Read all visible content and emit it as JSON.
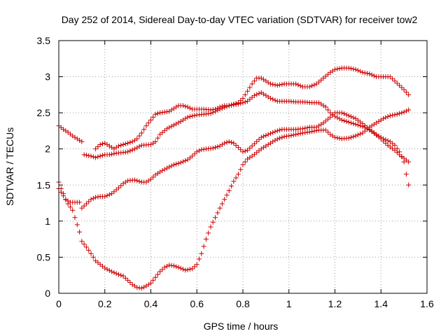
{
  "chart_data": {
    "type": "scatter",
    "title": "Day 252 of 2014, Sidereal Day-to-day VTEC variation (SDTVAR) for receiver tow2",
    "xlabel": "GPS time / hours",
    "ylabel": "SDTVAR / TECUs",
    "xlim": [
      0,
      1.6
    ],
    "ylim": [
      0,
      3.5
    ],
    "xticks": [
      0,
      0.2,
      0.4,
      0.6,
      0.8,
      1,
      1.2,
      1.4,
      1.6
    ],
    "xtick_labels": [
      "0",
      "0.2",
      "0.4",
      "0.6",
      "0.8",
      "1",
      "1.2",
      "1.4",
      "1.6"
    ],
    "yticks": [
      0,
      0.5,
      1,
      1.5,
      2,
      2.5,
      3,
      3.5
    ],
    "ytick_labels": [
      "0",
      "0.5",
      "1",
      "1.5",
      "2",
      "2.5",
      "3",
      "3.5"
    ],
    "grid": true,
    "marker": "+",
    "marker_color": "#cc0000",
    "series": [
      {
        "name": "series-1",
        "points": [
          [
            0,
            2.32
          ],
          [
            0.02,
            2.27
          ],
          [
            0.04,
            2.23
          ],
          [
            0.06,
            2.18
          ],
          [
            0.08,
            2.14
          ],
          [
            0.1,
            2.1
          ],
          [
            0.11,
            1.92
          ],
          [
            0.14,
            1.9
          ],
          [
            0.16,
            1.88
          ],
          [
            0.18,
            1.9
          ],
          [
            0.2,
            1.92
          ],
          [
            0.22,
            1.92
          ],
          [
            0.25,
            1.94
          ],
          [
            0.28,
            1.95
          ],
          [
            0.3,
            1.96
          ],
          [
            0.33,
            2.0
          ],
          [
            0.36,
            2.05
          ],
          [
            0.4,
            2.06
          ],
          [
            0.42,
            2.1
          ],
          [
            0.44,
            2.2
          ],
          [
            0.47,
            2.28
          ],
          [
            0.5,
            2.33
          ],
          [
            0.53,
            2.38
          ],
          [
            0.56,
            2.44
          ],
          [
            0.6,
            2.47
          ],
          [
            0.63,
            2.48
          ],
          [
            0.66,
            2.49
          ],
          [
            0.7,
            2.55
          ],
          [
            0.74,
            2.6
          ],
          [
            0.78,
            2.62
          ],
          [
            0.82,
            2.66
          ],
          [
            0.85,
            2.74
          ],
          [
            0.88,
            2.78
          ],
          [
            0.9,
            2.74
          ],
          [
            0.92,
            2.7
          ],
          [
            0.95,
            2.66
          ],
          [
            0.98,
            2.66
          ],
          [
            1.0,
            2.66
          ],
          [
            1.03,
            2.65
          ],
          [
            1.06,
            2.65
          ],
          [
            1.1,
            2.64
          ],
          [
            1.13,
            2.64
          ],
          [
            1.16,
            2.58
          ],
          [
            1.18,
            2.5
          ],
          [
            1.2,
            2.45
          ],
          [
            1.23,
            2.4
          ],
          [
            1.26,
            2.37
          ],
          [
            1.3,
            2.33
          ],
          [
            1.33,
            2.3
          ],
          [
            1.36,
            2.24
          ],
          [
            1.4,
            2.14
          ],
          [
            1.43,
            2.05
          ],
          [
            1.46,
            1.98
          ],
          [
            1.48,
            1.92
          ],
          [
            1.5,
            1.87
          ],
          [
            1.52,
            1.82
          ]
        ]
      },
      {
        "name": "series-2",
        "points": [
          [
            0,
            1.54
          ],
          [
            0.01,
            1.45
          ],
          [
            0.02,
            1.38
          ],
          [
            0.03,
            1.3
          ],
          [
            0.05,
            1.26
          ],
          [
            0.07,
            1.26
          ],
          [
            0.09,
            1.26
          ],
          [
            0.1,
            1.18
          ],
          [
            0.12,
            1.24
          ],
          [
            0.14,
            1.3
          ],
          [
            0.16,
            1.33
          ],
          [
            0.18,
            1.34
          ],
          [
            0.2,
            1.34
          ],
          [
            0.23,
            1.38
          ],
          [
            0.26,
            1.46
          ],
          [
            0.28,
            1.52
          ],
          [
            0.3,
            1.56
          ],
          [
            0.33,
            1.57
          ],
          [
            0.36,
            1.54
          ],
          [
            0.38,
            1.54
          ],
          [
            0.4,
            1.58
          ],
          [
            0.42,
            1.64
          ],
          [
            0.45,
            1.7
          ],
          [
            0.48,
            1.75
          ],
          [
            0.5,
            1.78
          ],
          [
            0.53,
            1.81
          ],
          [
            0.56,
            1.85
          ],
          [
            0.58,
            1.9
          ],
          [
            0.6,
            1.96
          ],
          [
            0.62,
            1.99
          ],
          [
            0.64,
            2.0
          ],
          [
            0.67,
            2.01
          ],
          [
            0.7,
            2.04
          ],
          [
            0.72,
            2.08
          ],
          [
            0.74,
            2.1
          ],
          [
            0.76,
            2.08
          ],
          [
            0.78,
            2.02
          ],
          [
            0.8,
            1.96
          ],
          [
            0.82,
            1.98
          ],
          [
            0.84,
            2.04
          ],
          [
            0.86,
            2.1
          ],
          [
            0.88,
            2.16
          ],
          [
            0.91,
            2.2
          ],
          [
            0.94,
            2.24
          ],
          [
            0.97,
            2.27
          ],
          [
            1.0,
            2.27
          ],
          [
            1.03,
            2.27
          ],
          [
            1.06,
            2.28
          ],
          [
            1.09,
            2.3
          ],
          [
            1.12,
            2.3
          ],
          [
            1.15,
            2.36
          ],
          [
            1.18,
            2.44
          ],
          [
            1.2,
            2.5
          ],
          [
            1.23,
            2.5
          ],
          [
            1.26,
            2.46
          ],
          [
            1.29,
            2.42
          ],
          [
            1.32,
            2.35
          ],
          [
            1.35,
            2.27
          ],
          [
            1.38,
            2.2
          ],
          [
            1.41,
            2.14
          ],
          [
            1.44,
            2.1
          ],
          [
            1.46,
            2.05
          ],
          [
            1.48,
            1.96
          ],
          [
            1.5,
            1.82
          ],
          [
            1.51,
            1.65
          ],
          [
            1.52,
            1.5
          ]
        ]
      },
      {
        "name": "series-3",
        "points": [
          [
            0,
            1.45
          ],
          [
            0.02,
            1.35
          ],
          [
            0.04,
            1.24
          ],
          [
            0.06,
            1.15
          ],
          [
            0.07,
            1.05
          ],
          [
            0.08,
            0.95
          ],
          [
            0.09,
            0.85
          ],
          [
            0.1,
            0.72
          ],
          [
            0.12,
            0.64
          ],
          [
            0.14,
            0.55
          ],
          [
            0.16,
            0.45
          ],
          [
            0.18,
            0.4
          ],
          [
            0.2,
            0.35
          ],
          [
            0.23,
            0.3
          ],
          [
            0.26,
            0.26
          ],
          [
            0.28,
            0.24
          ],
          [
            0.3,
            0.18
          ],
          [
            0.32,
            0.12
          ],
          [
            0.34,
            0.08
          ],
          [
            0.36,
            0.07
          ],
          [
            0.38,
            0.1
          ],
          [
            0.4,
            0.14
          ],
          [
            0.42,
            0.22
          ],
          [
            0.44,
            0.3
          ],
          [
            0.46,
            0.36
          ],
          [
            0.48,
            0.39
          ],
          [
            0.5,
            0.38
          ],
          [
            0.52,
            0.36
          ],
          [
            0.55,
            0.32
          ],
          [
            0.58,
            0.34
          ],
          [
            0.6,
            0.4
          ],
          [
            0.62,
            0.55
          ],
          [
            0.64,
            0.75
          ],
          [
            0.66,
            0.92
          ],
          [
            0.68,
            1.05
          ],
          [
            0.7,
            1.18
          ],
          [
            0.72,
            1.3
          ],
          [
            0.74,
            1.42
          ],
          [
            0.76,
            1.55
          ],
          [
            0.78,
            1.65
          ],
          [
            0.8,
            1.78
          ],
          [
            0.82,
            1.86
          ],
          [
            0.84,
            1.9
          ],
          [
            0.86,
            1.95
          ],
          [
            0.88,
            2.0
          ],
          [
            0.9,
            2.04
          ],
          [
            0.92,
            2.08
          ],
          [
            0.94,
            2.12
          ],
          [
            0.96,
            2.15
          ],
          [
            0.98,
            2.17
          ],
          [
            1.0,
            2.18
          ],
          [
            1.03,
            2.2
          ],
          [
            1.06,
            2.22
          ],
          [
            1.1,
            2.24
          ],
          [
            1.13,
            2.26
          ],
          [
            1.16,
            2.26
          ],
          [
            1.18,
            2.2
          ],
          [
            1.2,
            2.16
          ],
          [
            1.23,
            2.14
          ],
          [
            1.26,
            2.15
          ],
          [
            1.29,
            2.18
          ],
          [
            1.32,
            2.22
          ],
          [
            1.35,
            2.3
          ],
          [
            1.38,
            2.36
          ],
          [
            1.41,
            2.42
          ],
          [
            1.44,
            2.46
          ],
          [
            1.47,
            2.48
          ],
          [
            1.5,
            2.51
          ],
          [
            1.52,
            2.54
          ]
        ]
      },
      {
        "name": "series-4",
        "points": [
          [
            0.16,
            2.0
          ],
          [
            0.18,
            2.06
          ],
          [
            0.2,
            2.08
          ],
          [
            0.22,
            2.04
          ],
          [
            0.24,
            2.0
          ],
          [
            0.26,
            2.04
          ],
          [
            0.28,
            2.06
          ],
          [
            0.3,
            2.08
          ],
          [
            0.32,
            2.1
          ],
          [
            0.34,
            2.14
          ],
          [
            0.36,
            2.22
          ],
          [
            0.38,
            2.32
          ],
          [
            0.4,
            2.4
          ],
          [
            0.42,
            2.48
          ],
          [
            0.44,
            2.5
          ],
          [
            0.46,
            2.51
          ],
          [
            0.48,
            2.52
          ],
          [
            0.5,
            2.56
          ],
          [
            0.52,
            2.6
          ],
          [
            0.54,
            2.6
          ],
          [
            0.56,
            2.58
          ],
          [
            0.58,
            2.55
          ],
          [
            0.6,
            2.55
          ],
          [
            0.63,
            2.55
          ],
          [
            0.66,
            2.54
          ],
          [
            0.68,
            2.55
          ],
          [
            0.7,
            2.58
          ],
          [
            0.72,
            2.6
          ],
          [
            0.74,
            2.6
          ],
          [
            0.76,
            2.62
          ],
          [
            0.78,
            2.64
          ],
          [
            0.8,
            2.7
          ],
          [
            0.82,
            2.8
          ],
          [
            0.84,
            2.9
          ],
          [
            0.86,
            2.98
          ],
          [
            0.88,
            2.98
          ],
          [
            0.9,
            2.94
          ],
          [
            0.92,
            2.9
          ],
          [
            0.95,
            2.88
          ],
          [
            0.98,
            2.9
          ],
          [
            1.0,
            2.9
          ],
          [
            1.03,
            2.9
          ],
          [
            1.06,
            2.86
          ],
          [
            1.09,
            2.86
          ],
          [
            1.12,
            2.9
          ],
          [
            1.15,
            2.98
          ],
          [
            1.18,
            3.06
          ],
          [
            1.2,
            3.1
          ],
          [
            1.23,
            3.12
          ],
          [
            1.26,
            3.12
          ],
          [
            1.29,
            3.1
          ],
          [
            1.32,
            3.06
          ],
          [
            1.35,
            3.04
          ],
          [
            1.38,
            3.0
          ],
          [
            1.41,
            3.0
          ],
          [
            1.44,
            3.0
          ],
          [
            1.46,
            2.94
          ],
          [
            1.48,
            2.88
          ],
          [
            1.5,
            2.82
          ],
          [
            1.52,
            2.75
          ]
        ]
      }
    ]
  }
}
